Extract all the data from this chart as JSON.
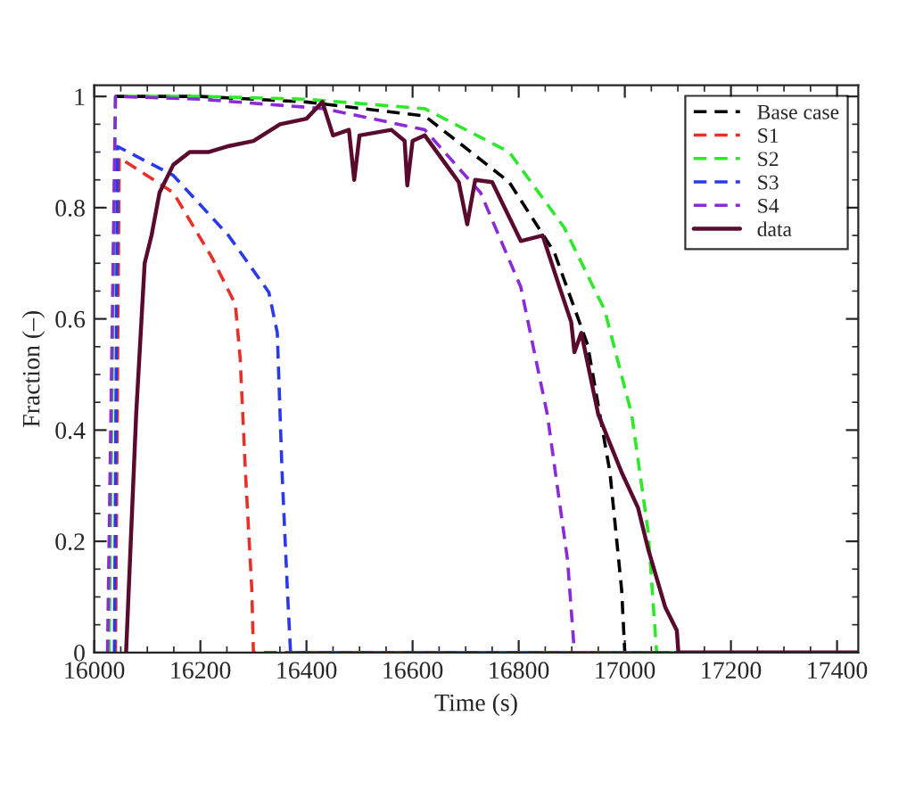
{
  "chart_data": {
    "type": "line",
    "xlabel": "Time (s)",
    "ylabel": "Fraction (–)",
    "xlim": [
      16000,
      17440
    ],
    "xticks": [
      16000,
      16200,
      16400,
      16600,
      16800,
      17000,
      17200,
      17400
    ],
    "ylim": [
      0,
      1.02
    ],
    "yticks": [
      0,
      0.2,
      0.4,
      0.6,
      0.8,
      1
    ],
    "grid": false,
    "legend": "top right",
    "marker": "none",
    "series": [
      {
        "name": "Base case",
        "color": "#000000",
        "line_style": "dashed",
        "x": [
          16040,
          16200,
          16400,
          16623,
          16782,
          16867,
          16930,
          16972,
          16994,
          17000
        ],
        "values": [
          1.0,
          1.0,
          0.99,
          0.965,
          0.846,
          0.72,
          0.553,
          0.324,
          0.113,
          0
        ]
      },
      {
        "name": "S1",
        "color": "#e8302a",
        "line_style": "dashed",
        "x": [
          16040,
          16047,
          16149,
          16222,
          16266,
          16275,
          16285,
          16297,
          16300,
          17440
        ],
        "values": [
          0,
          0.89,
          0.827,
          0.71,
          0.626,
          0.53,
          0.324,
          0.113,
          0,
          0
        ]
      },
      {
        "name": "S2",
        "color": "#2ee82a",
        "line_style": "dashed",
        "x": [
          16028,
          16040,
          16200,
          16400,
          16623,
          16782,
          16886,
          16962,
          17013,
          17044,
          17060,
          17440
        ],
        "values": [
          0,
          1.0,
          1.0,
          0.995,
          0.978,
          0.9,
          0.764,
          0.616,
          0.428,
          0.217,
          0,
          0
        ]
      },
      {
        "name": "S3",
        "color": "#2a3ae8",
        "line_style": "dashed",
        "x": [
          16038,
          16044,
          16149,
          16253,
          16329,
          16345,
          16354,
          16364,
          16370,
          17440
        ],
        "values": [
          0,
          0.91,
          0.858,
          0.75,
          0.648,
          0.575,
          0.324,
          0.113,
          0,
          0
        ]
      },
      {
        "name": "S4",
        "color": "#8a2ad8",
        "line_style": "dashed",
        "x": [
          16025,
          16040,
          16200,
          16434,
          16623,
          16728,
          16804,
          16854,
          16892,
          16905,
          17440
        ],
        "values": [
          0,
          1.0,
          0.995,
          0.978,
          0.94,
          0.827,
          0.657,
          0.428,
          0.167,
          0,
          0
        ]
      },
      {
        "name": "data",
        "color": "#5a0a2e",
        "line_style": "solid",
        "x": [
          16060,
          16079,
          16095,
          16108,
          16123,
          16149,
          16180,
          16215,
          16250,
          16300,
          16350,
          16400,
          16430,
          16450,
          16480,
          16490,
          16500,
          16560,
          16585,
          16590,
          16600,
          16623,
          16687,
          16703,
          16718,
          16750,
          16804,
          16845,
          16877,
          16899,
          16905,
          16918,
          16950,
          16994,
          17025,
          17044,
          17076,
          17098,
          17101,
          17440
        ],
        "values": [
          0,
          0.428,
          0.7,
          0.75,
          0.827,
          0.877,
          0.9,
          0.9,
          0.91,
          0.92,
          0.95,
          0.96,
          0.99,
          0.93,
          0.94,
          0.85,
          0.93,
          0.94,
          0.92,
          0.84,
          0.92,
          0.93,
          0.846,
          0.77,
          0.85,
          0.846,
          0.74,
          0.75,
          0.657,
          0.594,
          0.54,
          0.575,
          0.428,
          0.324,
          0.26,
          0.186,
          0.082,
          0.04,
          0,
          0
        ]
      }
    ]
  }
}
